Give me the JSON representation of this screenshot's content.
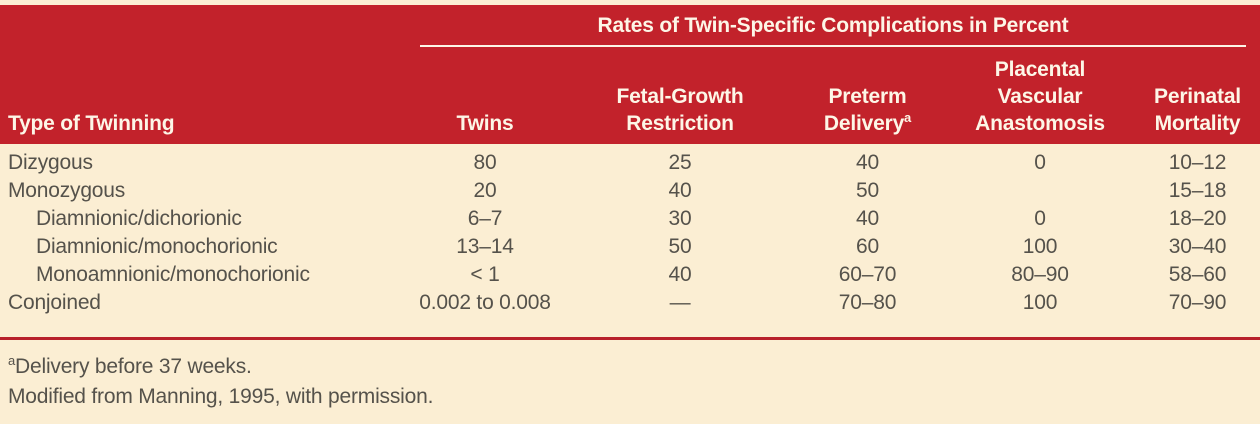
{
  "colors": {
    "header_red": "#c2222b",
    "divider_red": "#b8212a",
    "cream_background": "#fbeed3",
    "header_text": "#fdf6e7",
    "body_text": "#55524b"
  },
  "table": {
    "spanner_heading": "Rates of Twin-Specific Complications in Percent",
    "column_headers": {
      "type_of_twinning": "Type of Twinning",
      "twins": "Twins",
      "fetal_growth_restriction": [
        "Fetal-Growth",
        "Restriction"
      ],
      "preterm_delivery": [
        "Preterm",
        "Delivery"
      ],
      "preterm_delivery_footnote_marker": "a",
      "placental_vascular_anastomosis": [
        "Placental",
        "Vascular",
        "Anastomosis"
      ],
      "perinatal_mortality": [
        "Perinatal",
        "Mortality"
      ]
    },
    "rows": [
      {
        "label": "Dizygous",
        "indent": false,
        "values": [
          "80",
          "25",
          "40",
          "0",
          "10–12"
        ]
      },
      {
        "label": "Monozygous",
        "indent": false,
        "values": [
          "20",
          "40",
          "50",
          "",
          "15–18"
        ]
      },
      {
        "label": "Diamnionic/dichorionic",
        "indent": true,
        "values": [
          "6–7",
          "30",
          "40",
          "0",
          "18–20"
        ]
      },
      {
        "label": "Diamnionic/monochorionic",
        "indent": true,
        "values": [
          "13–14",
          "50",
          "60",
          "100",
          "30–40"
        ]
      },
      {
        "label": "Monoamnionic/monochorionic",
        "indent": true,
        "values": [
          "< 1",
          "40",
          "60–70",
          "80–90",
          "58–60"
        ]
      },
      {
        "label": "Conjoined",
        "indent": false,
        "values": [
          "0.002 to 0.008",
          "—",
          "70–80",
          "100",
          "70–90"
        ]
      }
    ],
    "footnotes": [
      {
        "marker": "a",
        "text": "Delivery before 37 weeks."
      },
      {
        "marker": "",
        "text": "Modified from Manning, 1995, with permission."
      }
    ]
  }
}
